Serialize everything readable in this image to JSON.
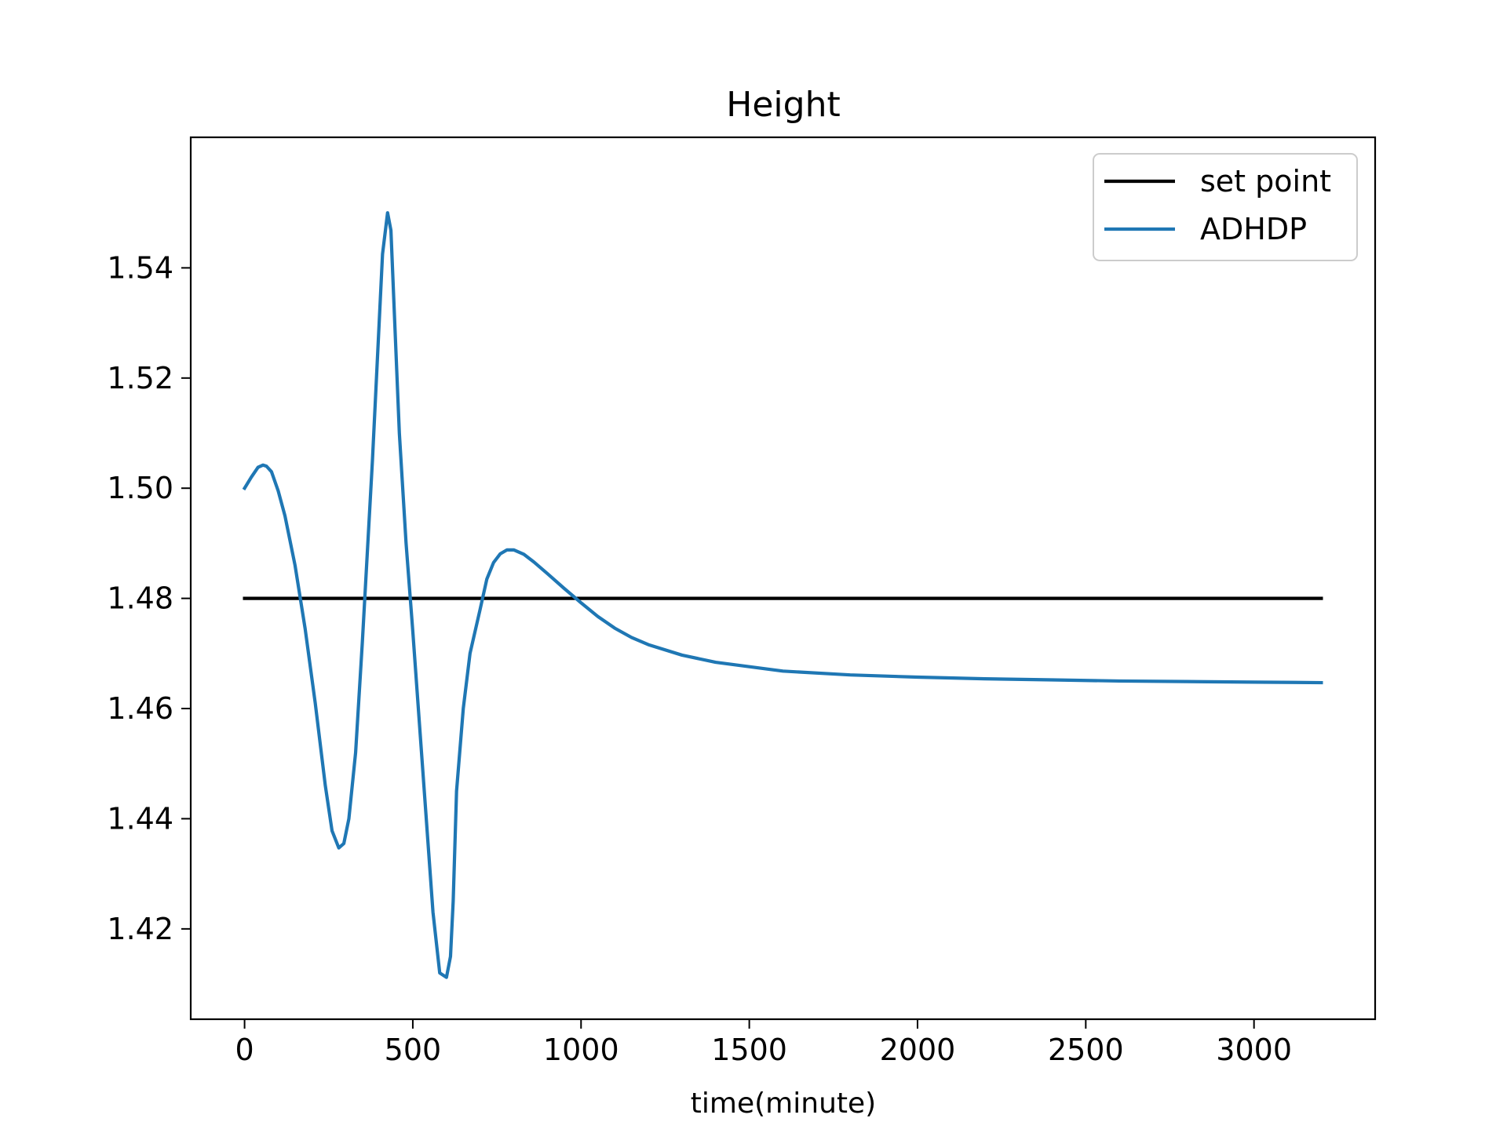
{
  "chart_data": {
    "type": "line",
    "title": "Height",
    "xlabel": "time(minute)",
    "ylabel": "",
    "xlim": [
      -160,
      3360
    ],
    "ylim": [
      1.4036,
      1.5637
    ],
    "x_ticks": [
      0,
      500,
      1000,
      1500,
      2000,
      2500,
      3000
    ],
    "x_tick_labels": [
      "0",
      "500",
      "1000",
      "1500",
      "2000",
      "2500",
      "3000"
    ],
    "y_ticks": [
      1.42,
      1.44,
      1.46,
      1.48,
      1.5,
      1.52,
      1.54
    ],
    "y_tick_labels": [
      "1.42",
      "1.44",
      "1.46",
      "1.48",
      "1.50",
      "1.52",
      "1.54"
    ],
    "grid": false,
    "legend_position": "top-right",
    "series": [
      {
        "name": "set point",
        "color": "#000000",
        "x": [
          0,
          3200
        ],
        "y": [
          1.48,
          1.48
        ]
      },
      {
        "name": "ADHDP",
        "color": "#1f77b4",
        "x": [
          0,
          20,
          40,
          55,
          65,
          80,
          100,
          120,
          150,
          180,
          210,
          240,
          260,
          280,
          295,
          310,
          330,
          350,
          380,
          410,
          425,
          435,
          445,
          460,
          480,
          500,
          520,
          540,
          560,
          580,
          600,
          612,
          620,
          630,
          650,
          670,
          700,
          720,
          740,
          760,
          780,
          800,
          830,
          860,
          900,
          950,
          1000,
          1050,
          1100,
          1150,
          1200,
          1300,
          1400,
          1500,
          1600,
          1800,
          2000,
          2200,
          2400,
          2600,
          2800,
          3000,
          3200
        ],
        "y": [
          1.5,
          1.502,
          1.5038,
          1.5042,
          1.504,
          1.503,
          1.4995,
          1.495,
          1.486,
          1.4745,
          1.461,
          1.446,
          1.4378,
          1.4347,
          1.4355,
          1.44,
          1.452,
          1.472,
          1.505,
          1.5425,
          1.55,
          1.5468,
          1.532,
          1.51,
          1.49,
          1.474,
          1.457,
          1.44,
          1.423,
          1.412,
          1.4112,
          1.415,
          1.425,
          1.445,
          1.46,
          1.47,
          1.478,
          1.4835,
          1.4865,
          1.4881,
          1.4888,
          1.4888,
          1.488,
          1.4866,
          1.4845,
          1.4818,
          1.4792,
          1.4767,
          1.4746,
          1.4729,
          1.4716,
          1.4697,
          1.4684,
          1.4676,
          1.4668,
          1.4661,
          1.4657,
          1.4654,
          1.4652,
          1.465,
          1.4649,
          1.4648,
          1.4647
        ]
      }
    ]
  }
}
